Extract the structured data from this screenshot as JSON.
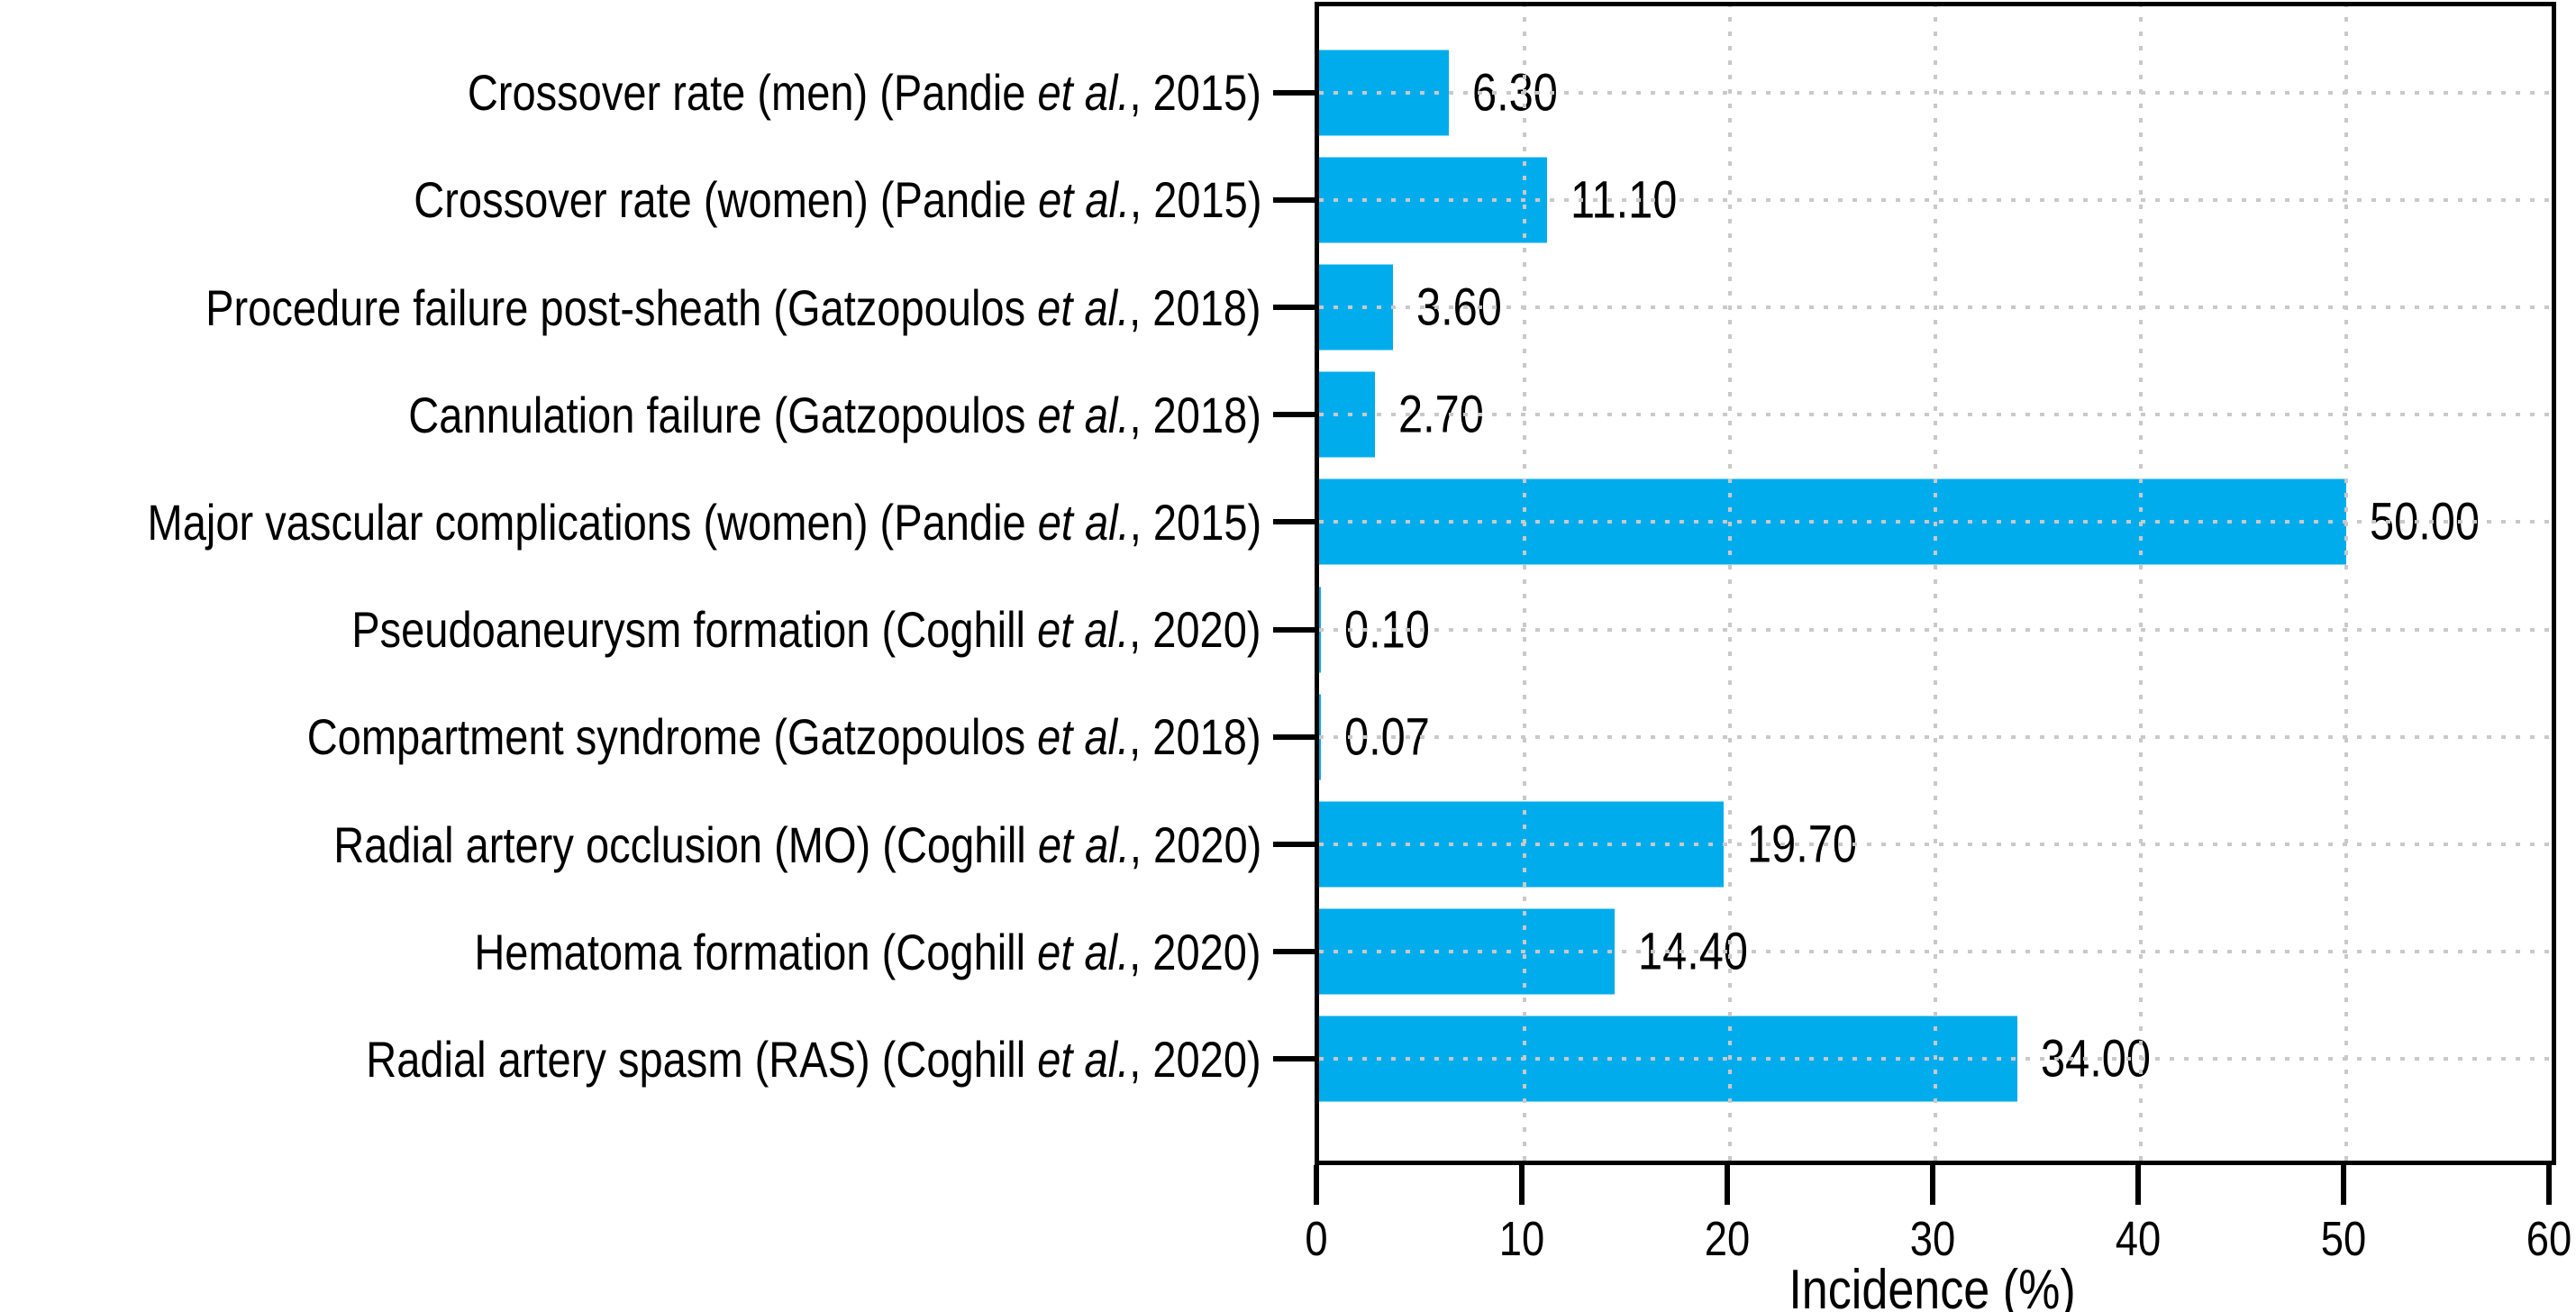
{
  "chart_data": {
    "type": "bar",
    "orientation": "horizontal",
    "title": "",
    "xlabel": "Incidence (%)",
    "ylabel": "",
    "xlim": [
      0,
      60
    ],
    "x_ticks": [
      0,
      10,
      20,
      30,
      40,
      50,
      60
    ],
    "grid": "dotted, both axes",
    "legend": "none",
    "bar_color": "#00ACEC",
    "categories": [
      "Crossover rate (men) (Pandie et al., 2015)",
      "Crossover rate (women) (Pandie et al., 2015)",
      "Procedure failure post-sheath (Gatzopoulos et al., 2018)",
      "Cannulation failure (Gatzopoulos et al., 2018)",
      "Major vascular complications (women) (Pandie et al., 2015)",
      "Pseudoaneurysm formation (Coghill et al., 2020)",
      "Compartment syndrome (Gatzopoulos et al., 2018)",
      "Radial artery occlusion (MO) (Coghill et al., 2020)",
      "Hematoma formation (Coghill et al., 2020)",
      "Radial artery spasm (RAS) (Coghill et al., 2020)"
    ],
    "values": [
      6.3,
      11.1,
      3.6,
      2.7,
      50.0,
      0.1,
      0.07,
      19.7,
      14.4,
      34.0
    ]
  },
  "rows": [
    {
      "label_pre": "Crossover rate (men) (Pandie ",
      "label_italic": "et al.",
      "label_post": ", 2015)",
      "value": 6.3,
      "value_label": "6.30"
    },
    {
      "label_pre": "Crossover rate (women) (Pandie ",
      "label_italic": "et al.",
      "label_post": ", 2015)",
      "value": 11.1,
      "value_label": "11.10"
    },
    {
      "label_pre": "Procedure failure post-sheath (Gatzopoulos ",
      "label_italic": "et al.",
      "label_post": ", 2018)",
      "value": 3.6,
      "value_label": "3.60"
    },
    {
      "label_pre": "Cannulation failure (Gatzopoulos ",
      "label_italic": "et al.",
      "label_post": ", 2018)",
      "value": 2.7,
      "value_label": "2.70"
    },
    {
      "label_pre": "Major vascular complications (women) (Pandie ",
      "label_italic": "et al.",
      "label_post": ", 2015)",
      "value": 50.0,
      "value_label": "50.00"
    },
    {
      "label_pre": "Pseudoaneurysm formation (Coghill ",
      "label_italic": "et al.",
      "label_post": ", 2020)",
      "value": 0.1,
      "value_label": "0.10"
    },
    {
      "label_pre": "Compartment syndrome (Gatzopoulos ",
      "label_italic": "et al.",
      "label_post": ", 2018)",
      "value": 0.07,
      "value_label": "0.07"
    },
    {
      "label_pre": "Radial artery occlusion (MO) (Coghill ",
      "label_italic": "et al.",
      "label_post": ", 2020)",
      "value": 19.7,
      "value_label": "19.70"
    },
    {
      "label_pre": "Hematoma formation (Coghill ",
      "label_italic": "et al.",
      "label_post": ", 2020)",
      "value": 14.4,
      "value_label": "14.40"
    },
    {
      "label_pre": "Radial artery spasm (RAS) (Coghill ",
      "label_italic": "et al.",
      "label_post": ", 2020)",
      "value": 34.0,
      "value_label": "34.00"
    }
  ],
  "x_axis": {
    "tick_labels": [
      "0",
      "10",
      "20",
      "30",
      "40",
      "50",
      "60"
    ],
    "max": 60,
    "label": "Incidence (%)"
  }
}
